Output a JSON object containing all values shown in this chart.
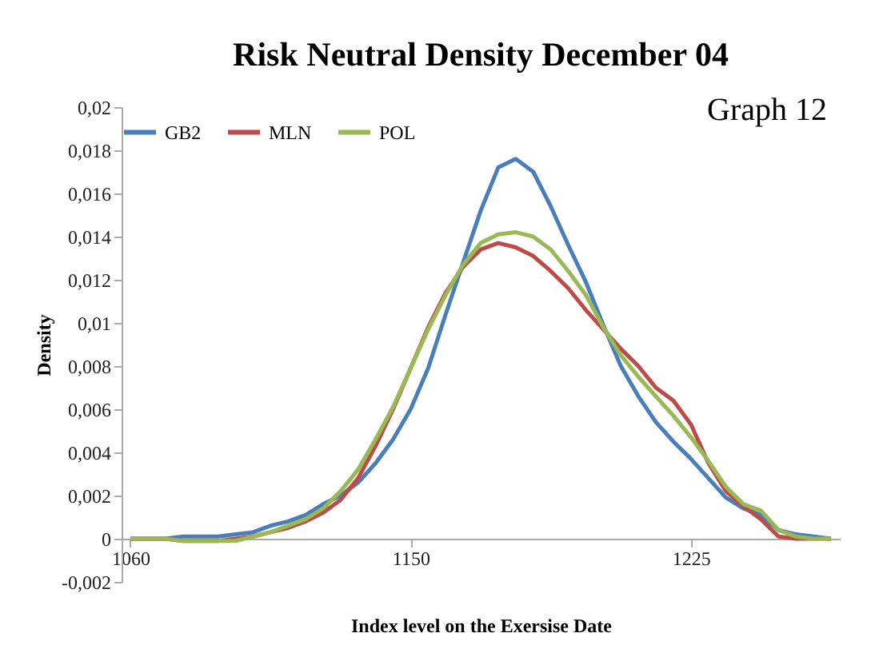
{
  "chart_data": {
    "type": "line",
    "title": "Risk Neutral Density December 04",
    "xlabel": "Index level on the Exersise Date",
    "ylabel": "Density",
    "categories": [
      "1060",
      null,
      null,
      null,
      null,
      null,
      null,
      null,
      null,
      null,
      null,
      null,
      null,
      null,
      null,
      null,
      "1150",
      null,
      null,
      null,
      null,
      null,
      null,
      null,
      null,
      null,
      null,
      null,
      null,
      null,
      null,
      null,
      "1225",
      null,
      null,
      null,
      null,
      null,
      null,
      null,
      null
    ],
    "series": [
      {
        "name": "GB2",
        "color": "#4a7ebb",
        "values": [
          0,
          0,
          0,
          0.0001,
          0.0001,
          0.0001,
          0.0002,
          0.0003,
          0.0006,
          0.0008,
          0.0011,
          0.0016,
          0.002,
          0.0026,
          0.0035,
          0.0046,
          0.006,
          0.0079,
          0.0104,
          0.0128,
          0.0152,
          0.0172,
          0.0176,
          0.017,
          0.0154,
          0.0136,
          0.0119,
          0.0099,
          0.008,
          0.0066,
          0.0054,
          0.0045,
          0.0037,
          0.0028,
          0.0019,
          0.0014,
          0.0011,
          0.0004,
          0.0002,
          0.0001,
          0
        ]
      },
      {
        "name": "MLN",
        "color": "#be4b48",
        "values": [
          0,
          0,
          0,
          -0.0001,
          -0.0001,
          -0.0001,
          0,
          0.0001,
          0.0003,
          0.0005,
          0.0008,
          0.0012,
          0.0018,
          0.0028,
          0.0043,
          0.006,
          0.0079,
          0.0098,
          0.0114,
          0.0126,
          0.0134,
          0.0137,
          0.0135,
          0.0131,
          0.0124,
          0.0116,
          0.0106,
          0.0097,
          0.0088,
          0.008,
          0.007,
          0.0064,
          0.0053,
          0.0035,
          0.0022,
          0.0015,
          0.0009,
          0.0001,
          0,
          0,
          0
        ]
      },
      {
        "name": "POL",
        "color": "#98b954",
        "values": [
          0,
          0,
          0,
          -0.0001,
          -0.0001,
          -0.0001,
          -0.0001,
          0.0001,
          0.0003,
          0.0006,
          0.0009,
          0.0014,
          0.0022,
          0.0032,
          0.0046,
          0.0061,
          0.0079,
          0.0097,
          0.0113,
          0.0127,
          0.0137,
          0.0141,
          0.0142,
          0.014,
          0.0134,
          0.0124,
          0.0113,
          0.0098,
          0.0085,
          0.0075,
          0.0066,
          0.0057,
          0.0047,
          0.0036,
          0.0024,
          0.0016,
          0.0013,
          0.0004,
          0.0001,
          0,
          0
        ]
      }
    ],
    "ylim": [
      -0.002,
      0.02
    ],
    "yticks": [
      {
        "value": -0.002,
        "label": "-0,002"
      },
      {
        "value": 0,
        "label": "0"
      },
      {
        "value": 0.002,
        "label": "0,002"
      },
      {
        "value": 0.004,
        "label": "0,004"
      },
      {
        "value": 0.006,
        "label": "0,006"
      },
      {
        "value": 0.008,
        "label": "0,008"
      },
      {
        "value": 0.01,
        "label": "0,01"
      },
      {
        "value": 0.012,
        "label": "0,012"
      },
      {
        "value": 0.014,
        "label": "0,014"
      },
      {
        "value": 0.016,
        "label": "0,016"
      },
      {
        "value": 0.018,
        "label": "0,018"
      },
      {
        "value": 0.02,
        "label": "0,02"
      }
    ],
    "annotations": [
      "Graph 12"
    ],
    "legend": "top",
    "grid": false,
    "marker": "none",
    "line_style": "solid"
  }
}
